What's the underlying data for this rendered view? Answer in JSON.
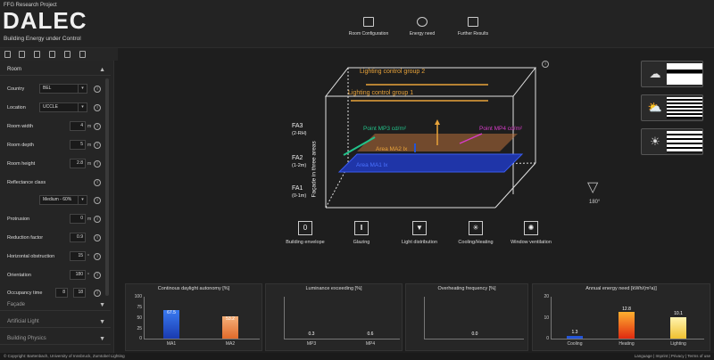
{
  "header": {
    "subtitle": "FFG Research Project",
    "logo": "DALEC",
    "tagline": "Building Energy under Control",
    "nav": [
      {
        "label": "Room Configuration",
        "icon": "room-icon"
      },
      {
        "label": "Energy need",
        "icon": "energy-icon"
      },
      {
        "label": "Further Results",
        "icon": "results-icon"
      }
    ]
  },
  "sidebar": {
    "section_room": "Room",
    "country": {
      "label": "Country",
      "value": "BEL"
    },
    "location": {
      "label": "Location",
      "value": "UCCLE"
    },
    "room_width": {
      "label": "Room width",
      "value": "4",
      "unit": "m"
    },
    "room_depth": {
      "label": "Room depth",
      "value": "5",
      "unit": "m"
    },
    "room_height": {
      "label": "Room height",
      "value": "2.8",
      "unit": "m"
    },
    "reflectance": {
      "label": "Reflectance class",
      "value": "Medium - 60%"
    },
    "protrusion": {
      "label": "Protrusion",
      "value": "0",
      "unit": "m"
    },
    "reduction": {
      "label": "Reduction factor",
      "value": "0.9"
    },
    "horizontal": {
      "label": "Horizontal obstruction",
      "value": "15",
      "unit": "°"
    },
    "orientation": {
      "label": "Orientation",
      "value": "180",
      "unit": "°"
    },
    "occupancy": {
      "label": "Occupancy time",
      "from": "8",
      "to": "18"
    },
    "section_facade": "Façade",
    "section_light": "Artificial Light",
    "section_physics": "Building Physics"
  },
  "room": {
    "group2": "Lighting control group 2",
    "group1": "Lighting control group 1",
    "fa3": "FA3",
    "fa3_sub": "(2-RH)",
    "fa2": "FA2",
    "fa2_sub": "(1-2m)",
    "fa1": "FA1",
    "fa1_sub": "(0-1m)",
    "facade_label": "Façade in three areas",
    "mp3": "Point MP3 cd/m²",
    "mp4": "Point MP4 cd/m²",
    "ma2": "Area MA2 lx",
    "ma1": "Area MA1 lx",
    "info": "i"
  },
  "angle": "180°",
  "controls": [
    {
      "label": "Building envelope",
      "icon": "building-icon"
    },
    {
      "label": "Glazing",
      "icon": "glazing-icon"
    },
    {
      "label": "Light distribution",
      "icon": "light-icon"
    },
    {
      "label": "Cooling/Heating",
      "icon": "cooling-icon"
    },
    {
      "label": "Window ventilation",
      "icon": "ventilation-icon"
    }
  ],
  "charts": {
    "daylight": {
      "title": "Continous daylight autonomy [%]",
      "ticks": [
        "100",
        "75",
        "50",
        "25",
        "0"
      ],
      "bars": [
        {
          "label": "MA1",
          "value": "67.5"
        },
        {
          "label": "MA2",
          "value": "53.2"
        }
      ]
    },
    "luminance": {
      "title": "Luminance exceeding [%]",
      "bars": [
        {
          "label": "MP3",
          "value": "0.3"
        },
        {
          "label": "MP4",
          "value": "0.6"
        }
      ]
    },
    "overheating": {
      "title": "Overheating frequency [%]",
      "value": "0.0"
    },
    "energy": {
      "title": "Annual energy need [kWh/(m²a)]",
      "ticks": [
        "20",
        "10",
        "0"
      ],
      "bars": [
        {
          "label": "Cooling",
          "value": "1.3"
        },
        {
          "label": "Heating",
          "value": "12.8"
        },
        {
          "label": "Lighting",
          "value": "10.1"
        }
      ]
    }
  },
  "chart_data": [
    {
      "type": "bar",
      "title": "Continous daylight autonomy [%]",
      "categories": [
        "MA1",
        "MA2"
      ],
      "values": [
        67.5,
        53.2
      ],
      "ylim": [
        0,
        100
      ]
    },
    {
      "type": "bar",
      "title": "Luminance exceeding [%]",
      "categories": [
        "MP3",
        "MP4"
      ],
      "values": [
        0.3,
        0.6
      ]
    },
    {
      "type": "bar",
      "title": "Overheating frequency [%]",
      "values": [
        0.0
      ]
    },
    {
      "type": "bar",
      "title": "Annual energy need [kWh/(m²a)]",
      "categories": [
        "Cooling",
        "Heating",
        "Lighting"
      ],
      "values": [
        1.3,
        12.8,
        10.1
      ],
      "ylim": [
        0,
        20
      ]
    }
  ],
  "footer": {
    "copyright": "© Copyright: Bartenbach, University of Innsbruck, Zumtobel Lighting",
    "links": "Language | Imprint | Privacy | Terms of use"
  },
  "colors": {
    "accent_orange": "#e8a33a",
    "blue": "#2455d8",
    "green": "#22c28a",
    "magenta": "#d63cc8"
  }
}
